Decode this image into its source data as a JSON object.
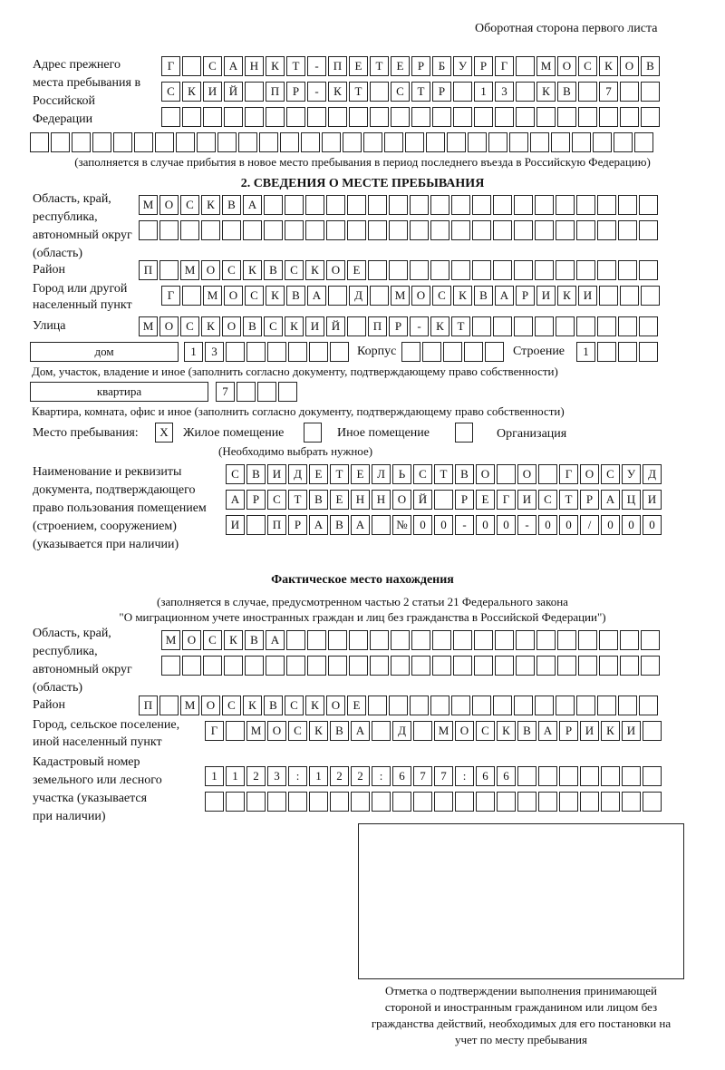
{
  "header": "Оборотная сторона первого листа",
  "previous": {
    "label": "Адрес прежнего места пребывания в Российской Федерации",
    "rows": [
      "Г САНКТ-ПЕТЕРБУРГ МОСКОВ",
      "СКИЙ ПР-КТ СТР 13 КВ 7",
      "",
      ""
    ],
    "note": "(заполняется в случае прибытия в новое место пребывания в период последнего въезда в Российскую Федерацию)"
  },
  "section2": {
    "title": "2. СВЕДЕНИЯ О МЕСТЕ ПРЕБЫВАНИЯ",
    "region_label": "Область, край, республика, автономный округ (область)",
    "region_rows": [
      "МОСКВА",
      ""
    ],
    "district_label": "Район",
    "district": "П МОСКВСКОЕ",
    "city_label": "Город или другой населенный пункт",
    "city": "Г МОСКВА Д МОСКВАРИКИ",
    "street_label": "Улица",
    "street": "МОСКОВСКИЙ ПР-КТ",
    "house_type": "дом",
    "house_number": "13",
    "korpus_label": "Корпус",
    "korpus": "",
    "building_label": "Строение",
    "building": "1",
    "house_note": "Дом, участок, владение и иное (заполнить согласно документу, подтверждающему право собственности)",
    "apt_type": "квартира",
    "apt_number": "7",
    "apt_note": "Квартира, комната, офис и иное (заполнить согласно документу, подтверждающему право собственности)",
    "place_label": "Место пребывания:",
    "options": [
      {
        "label": "Жилое помещение",
        "mark": "X",
        "checked": true
      },
      {
        "label": "Иное помещение",
        "mark": "",
        "checked": false
      },
      {
        "label": "Организация",
        "mark": "",
        "checked": false
      }
    ],
    "choose_note": "(Необходимо выбрать нужное)",
    "doc_label": "Наименование и реквизиты документа, подтверждающего право пользования помещением (строением, сооружением) (указывается при наличии)",
    "doc_rows": [
      "СВИДЕТЕЛЬСТВО О ГОСУД",
      "АРСТВЕННОЙ РЕГИСТРАЦИ",
      "И ПРАВА №00-00-00/000"
    ]
  },
  "actual": {
    "title": "Фактическое место нахождения",
    "note1": "(заполняется в случае, предусмотренном частью 2 статьи 21 Федерального закона",
    "note2": "\"О миграционном учете иностранных граждан и лиц без гражданства в Российской Федерации\")",
    "region_label": "Область, край, республика, автономный округ (область)",
    "region_rows": [
      "МОСКВА",
      ""
    ],
    "district_label": "Район",
    "district": "П МОСКВСКОЕ",
    "city_label": "Город, сельское поселение, иной населенный пункт",
    "city": "Г МОСКВА Д МОСКВАРИКИ",
    "cadastral_label": "Кадастровый номер земельного или лесного участка (указывается при наличии)",
    "cadastral_rows": [
      "1123:122:677:66",
      ""
    ]
  },
  "stamp": {
    "caption": "Отметка о подтверждении выполнения принимающей стороной и иностранным гражданином или лицом без гражданства действий, необходимых для его постановки на учет по месту пребывания"
  }
}
